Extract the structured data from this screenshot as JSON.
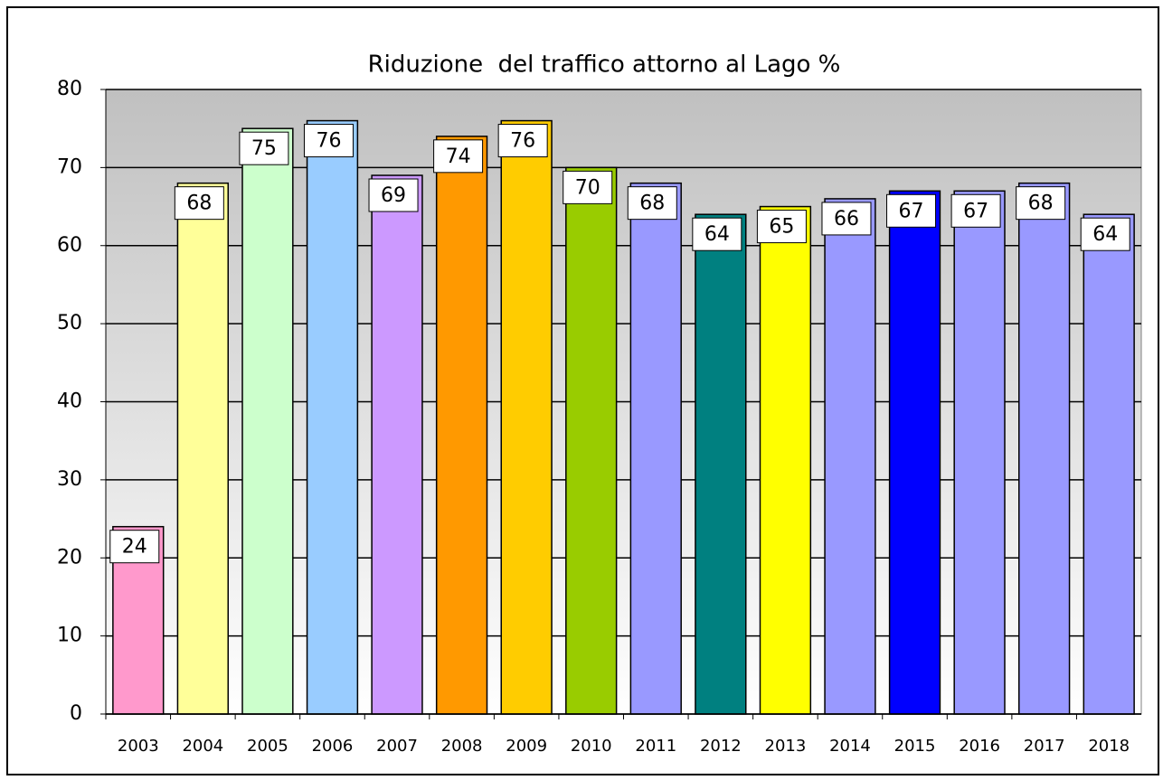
{
  "chart_data": {
    "type": "bar",
    "title": "Riduzione  del traffico attorno al Lago %",
    "categories": [
      "2003",
      "2004",
      "2005",
      "2006",
      "2007",
      "2008",
      "2009",
      "2010",
      "2011",
      "2012",
      "2013",
      "2014",
      "2015",
      "2016",
      "2017",
      "2018"
    ],
    "values": [
      24,
      68,
      75,
      76,
      69,
      74,
      76,
      70,
      68,
      64,
      65,
      66,
      67,
      67,
      68,
      64
    ],
    "colors": [
      "#ff99cc",
      "#ffff99",
      "#ccffcc",
      "#99ccff",
      "#cc99ff",
      "#ff9900",
      "#ffcc00",
      "#99cc00",
      "#9999ff",
      "#008080",
      "#ffff00",
      "#9999ff",
      "#0000ff",
      "#9999ff",
      "#9999ff",
      "#9999ff"
    ],
    "ylim": [
      0,
      80
    ],
    "yticks": [
      0,
      10,
      20,
      30,
      40,
      50,
      60,
      70,
      80
    ],
    "grid": true
  }
}
